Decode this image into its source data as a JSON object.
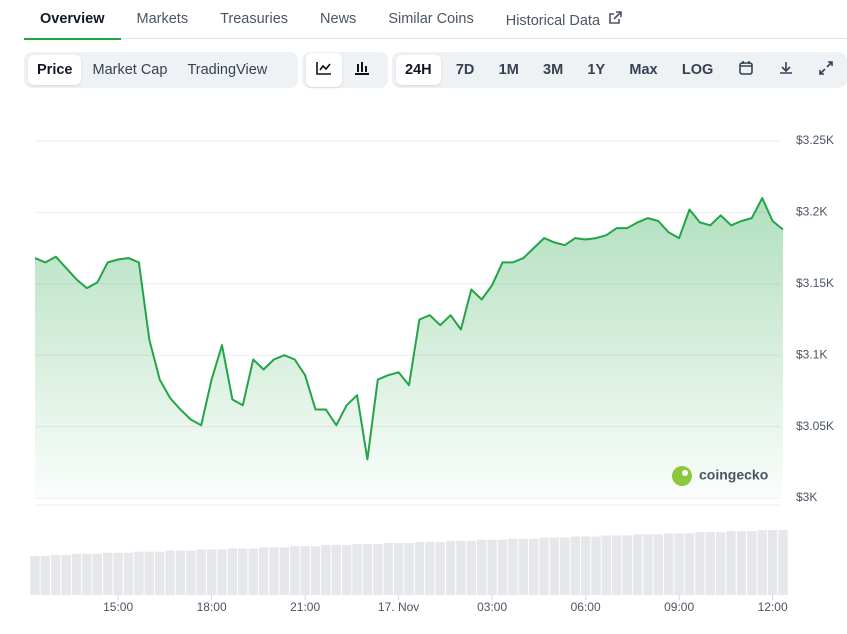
{
  "tabs": [
    "Overview",
    "Markets",
    "Treasuries",
    "News",
    "Similar Coins",
    "Historical Data"
  ],
  "chart_modes": [
    "Price",
    "Market Cap",
    "TradingView"
  ],
  "ranges": [
    "24H",
    "7D",
    "1M",
    "3M",
    "1Y",
    "Max",
    "LOG"
  ],
  "watermark": "coingecko",
  "chart_data": {
    "type": "line",
    "color": "#22a447",
    "categories": [
      null,
      null,
      null,
      null,
      null,
      null,
      null,
      null,
      "15:00",
      null,
      null,
      null,
      null,
      null,
      null,
      null,
      null,
      "18:00",
      null,
      null,
      null,
      null,
      null,
      null,
      null,
      null,
      "21:00",
      null,
      null,
      null,
      null,
      null,
      null,
      null,
      null,
      "17. Nov",
      null,
      null,
      null,
      null,
      null,
      null,
      null,
      null,
      "03:00",
      null,
      null,
      null,
      null,
      null,
      null,
      null,
      null,
      "06:00",
      null,
      null,
      null,
      null,
      null,
      null,
      null,
      null,
      "09:00",
      null,
      null,
      null,
      null,
      null,
      null,
      null,
      null,
      "12:00",
      null
    ],
    "values": [
      3168,
      3165,
      3169,
      3161,
      3153,
      3147,
      3151,
      3165,
      3167,
      3168,
      3165,
      3111,
      3083,
      3070,
      3062,
      3055,
      3051,
      3083,
      3107,
      3069,
      3065,
      3097,
      3090,
      3097,
      3100,
      3097,
      3086,
      3062,
      3062,
      3051,
      3065,
      3072,
      3027,
      3083,
      3086,
      3088,
      3079,
      3125,
      3128,
      3121,
      3128,
      3118,
      3146,
      3139,
      3149,
      3165,
      3165,
      3168,
      3175,
      3182,
      3179,
      3177,
      3182,
      3181,
      3182,
      3184,
      3189,
      3189,
      3193,
      3196,
      3194,
      3186,
      3182,
      3202,
      3193,
      3191,
      3198,
      3191,
      3194,
      3196,
      3210,
      3194,
      3188
    ],
    "volume": [
      36,
      36,
      37,
      37,
      38,
      38,
      38,
      39,
      39,
      39,
      40,
      40,
      40,
      41,
      41,
      41,
      42,
      42,
      42,
      43,
      43,
      43,
      44,
      44,
      44,
      45,
      45,
      45,
      46,
      46,
      46,
      47,
      47,
      47,
      48,
      48,
      48,
      49,
      49,
      49,
      50,
      50,
      50,
      51,
      51,
      51,
      52,
      52,
      52,
      53,
      53,
      53,
      54,
      54,
      54,
      55,
      55,
      55,
      56,
      56,
      56,
      57,
      57,
      57,
      58,
      58,
      58,
      59,
      59,
      59,
      60,
      60,
      60
    ],
    "ylim": [
      3000,
      3250
    ],
    "yticks": [
      {
        "value": 3000,
        "label": "$3K"
      },
      {
        "value": 3050,
        "label": "$3.05K"
      },
      {
        "value": 3100,
        "label": "$3.1K"
      },
      {
        "value": 3150,
        "label": "$3.15K"
      },
      {
        "value": 3200,
        "label": "$3.2K"
      },
      {
        "value": 3250,
        "label": "$3.25K"
      }
    ],
    "grid": true
  }
}
